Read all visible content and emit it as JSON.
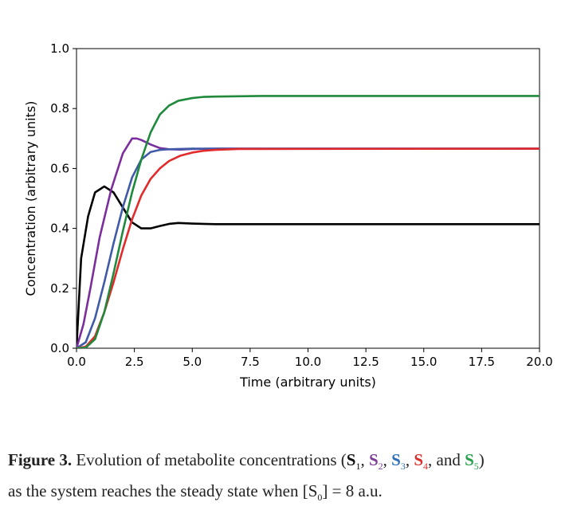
{
  "chart_data": {
    "type": "line",
    "xlabel": "Time (arbitrary units)",
    "ylabel": "Concentration (arbitrary units)",
    "xlim": [
      0,
      20
    ],
    "ylim": [
      0,
      1.0
    ],
    "xticks": [
      "0.0",
      "2.5",
      "5.0",
      "7.5",
      "10.0",
      "12.5",
      "15.0",
      "17.5",
      "20.0"
    ],
    "yticks": [
      "0.0",
      "0.2",
      "0.4",
      "0.6",
      "0.8",
      "1.0"
    ],
    "grid": false,
    "series": [
      {
        "color": "#000000",
        "x": [
          0,
          0.2,
          0.5,
          0.8,
          1.2,
          1.6,
          2.0,
          2.4,
          2.8,
          3.2,
          3.6,
          4.0,
          4.4,
          5.0,
          6.0,
          8.0,
          20.0
        ],
        "y": [
          0,
          0.3,
          0.44,
          0.52,
          0.54,
          0.52,
          0.47,
          0.42,
          0.4,
          0.4,
          0.408,
          0.415,
          0.418,
          0.416,
          0.414,
          0.414,
          0.414
        ]
      },
      {
        "color": "#7b2d9e",
        "x": [
          0,
          0.3,
          0.6,
          1.0,
          1.5,
          2.0,
          2.4,
          2.6,
          2.8,
          3.2,
          3.6,
          4.0,
          4.5,
          5.0,
          6.0,
          20.0
        ],
        "y": [
          0,
          0.08,
          0.2,
          0.37,
          0.53,
          0.65,
          0.7,
          0.7,
          0.695,
          0.68,
          0.668,
          0.664,
          0.663,
          0.665,
          0.666,
          0.666
        ]
      },
      {
        "color": "#3f5aa8",
        "x": [
          0,
          0.4,
          0.8,
          1.2,
          1.6,
          2.0,
          2.4,
          2.8,
          3.2,
          3.6,
          4.0,
          4.5,
          5.0,
          6.0,
          20.0
        ],
        "y": [
          0,
          0.02,
          0.1,
          0.22,
          0.35,
          0.47,
          0.57,
          0.63,
          0.655,
          0.662,
          0.664,
          0.665,
          0.666,
          0.666,
          0.666
        ]
      },
      {
        "color": "#e32a2a",
        "x": [
          0,
          0.4,
          0.8,
          1.2,
          1.6,
          2.0,
          2.4,
          2.8,
          3.2,
          3.6,
          4.0,
          4.5,
          5.0,
          5.5,
          6.0,
          7.0,
          20.0
        ],
        "y": [
          0,
          0.005,
          0.04,
          0.12,
          0.22,
          0.33,
          0.43,
          0.51,
          0.565,
          0.6,
          0.625,
          0.643,
          0.653,
          0.659,
          0.662,
          0.665,
          0.666
        ]
      },
      {
        "color": "#1f8a3c",
        "x": [
          0,
          0.4,
          0.8,
          1.2,
          1.6,
          2.0,
          2.4,
          2.8,
          3.2,
          3.6,
          4.0,
          4.4,
          5.0,
          5.5,
          6.0,
          7.0,
          8.0,
          20.0
        ],
        "y": [
          0,
          0.002,
          0.03,
          0.12,
          0.25,
          0.39,
          0.52,
          0.63,
          0.72,
          0.78,
          0.81,
          0.826,
          0.835,
          0.839,
          0.84,
          0.841,
          0.842,
          0.842
        ]
      }
    ]
  },
  "caption": {
    "fig_label": "Figure 3.",
    "text_before": " Evolution of metabolite concentrations (",
    "species": [
      {
        "letter": "S",
        "sub": "1",
        "sep": ", "
      },
      {
        "letter": "S",
        "sub": "2",
        "sep": ", "
      },
      {
        "letter": "S",
        "sub": "3",
        "sep": ", "
      },
      {
        "letter": "S",
        "sub": "4",
        "sep": ", and "
      },
      {
        "letter": "S",
        "sub": "5",
        "sep": ")"
      }
    ],
    "line2_before": "as the system reaches the steady state when [S",
    "line2_sub": "0",
    "line2_after": "] = 8 a.u."
  }
}
